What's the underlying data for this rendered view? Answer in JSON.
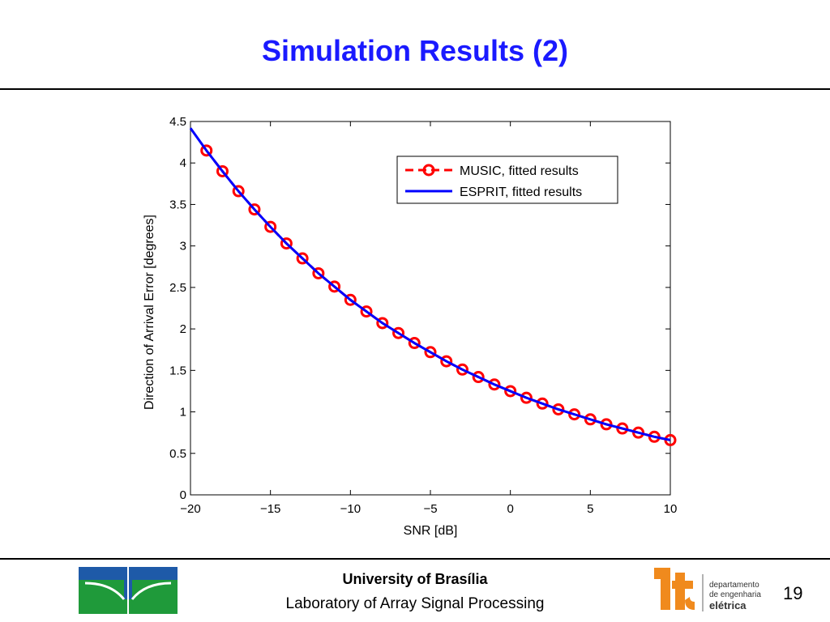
{
  "slide": {
    "title": "Simulation Results (2)",
    "page_number": "19"
  },
  "footer": {
    "university": "University of Brasília",
    "lab": "Laboratory of Array Signal Processing",
    "dept_lines": [
      "departamento",
      "de engenharia",
      "elétrica"
    ]
  },
  "colors": {
    "title": "#1a1aff",
    "music": "#ff0000",
    "esprit": "#0000ff",
    "unb_green": "#1f9a3a",
    "unb_blue": "#1e5aa8",
    "dept_orange": "#f08a1d"
  },
  "chart_data": {
    "type": "line",
    "title": "",
    "xlabel": "SNR [dB]",
    "ylabel": "Direction of Arrival Error [degrees]",
    "xlim": [
      -20,
      10
    ],
    "ylim": [
      0,
      4.5
    ],
    "xticks": [
      -20,
      -15,
      -10,
      -5,
      0,
      5,
      10
    ],
    "xtick_labels": [
      "−20",
      "−15",
      "−10",
      "−5",
      "0",
      "5",
      "10"
    ],
    "yticks": [
      0,
      0.5,
      1,
      1.5,
      2,
      2.5,
      3,
      3.5,
      4,
      4.5
    ],
    "ytick_labels": [
      "0",
      "0.5",
      "1",
      "1.5",
      "2",
      "2.5",
      "3",
      "3.5",
      "4",
      "4.5"
    ],
    "grid": false,
    "legend_position": "top-right",
    "series": [
      {
        "name": "MUSIC, fitted results",
        "style": "dashed-red-circles",
        "x": [
          -19,
          -18,
          -17,
          -16,
          -15,
          -14,
          -13,
          -12,
          -11,
          -10,
          -9,
          -8,
          -7,
          -6,
          -5,
          -4,
          -3,
          -2,
          -1,
          0,
          1,
          2,
          3,
          4,
          5,
          6,
          7,
          8,
          9,
          10
        ],
        "y": [
          4.15,
          3.9,
          3.66,
          3.44,
          3.23,
          3.03,
          2.85,
          2.67,
          2.51,
          2.35,
          2.21,
          2.07,
          1.95,
          1.83,
          1.72,
          1.61,
          1.51,
          1.42,
          1.33,
          1.25,
          1.17,
          1.1,
          1.03,
          0.97,
          0.91,
          0.85,
          0.8,
          0.75,
          0.7,
          0.66
        ]
      },
      {
        "name": "ESPRIT, fitted results",
        "style": "solid-blue",
        "x": [
          -20,
          -19,
          -18,
          -17,
          -16,
          -15,
          -14,
          -13,
          -12,
          -11,
          -10,
          -9,
          -8,
          -7,
          -6,
          -5,
          -4,
          -3,
          -2,
          -1,
          0,
          1,
          2,
          3,
          4,
          5,
          6,
          7,
          8,
          9,
          10
        ],
        "y": [
          4.42,
          4.15,
          3.9,
          3.66,
          3.44,
          3.23,
          3.03,
          2.85,
          2.67,
          2.51,
          2.35,
          2.21,
          2.07,
          1.95,
          1.83,
          1.72,
          1.61,
          1.51,
          1.42,
          1.33,
          1.25,
          1.17,
          1.1,
          1.03,
          0.97,
          0.91,
          0.85,
          0.8,
          0.75,
          0.7,
          0.66
        ]
      }
    ]
  }
}
